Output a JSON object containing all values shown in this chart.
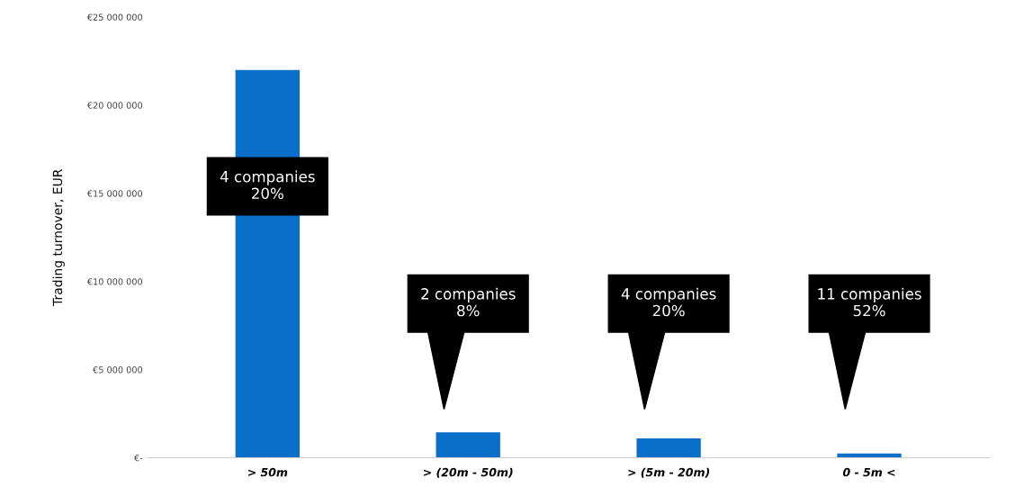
{
  "chart_data": {
    "type": "bar",
    "ylabel": "Trading turnover, EUR",
    "categories": [
      "> 50m",
      "> (20m - 50m)",
      "> (5m - 20m)",
      "0 - 5m <"
    ],
    "values": [
      22000000,
      1450000,
      1100000,
      250000
    ],
    "color": "#0a6fc9",
    "ylim": [
      0,
      25000000
    ],
    "yticks": [
      {
        "value": 0,
        "label": "€-"
      },
      {
        "value": 5000000,
        "label": "€5 000 000"
      },
      {
        "value": 10000000,
        "label": "€10 000 000"
      },
      {
        "value": 15000000,
        "label": "€15 000 000"
      },
      {
        "value": 20000000,
        "label": "€20 000 000"
      },
      {
        "value": 25000000,
        "label": "€25 000 000"
      }
    ],
    "grid": false,
    "annotations": [
      "4 companies\n20%",
      "2 companies\n8%",
      "4 companies\n20%",
      "11 companies\n52%"
    ]
  }
}
